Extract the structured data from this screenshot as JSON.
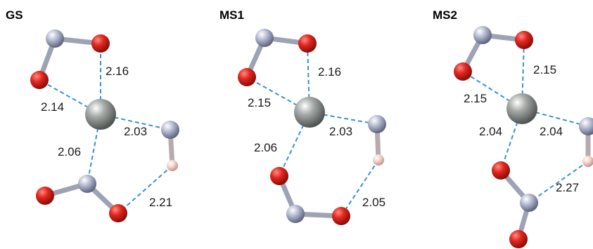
{
  "colors": {
    "oxygen": "#e0261e",
    "nitrogen": "#aab0c8",
    "metal": "#9aa09d",
    "hydrogen": "#f4d2cc",
    "contact_line": "#3a8fd6"
  },
  "panels": [
    {
      "title": "GS",
      "distances": [
        "2.16",
        "2.14",
        "2.03",
        "2.06",
        "2.21"
      ]
    },
    {
      "title": "MS1",
      "distances": [
        "2.16",
        "2.15",
        "2.03",
        "2.06",
        "2.05"
      ]
    },
    {
      "title": "MS2",
      "distances": [
        "2.15",
        "2.15",
        "2.04",
        "2.04",
        "2.27"
      ]
    }
  ]
}
